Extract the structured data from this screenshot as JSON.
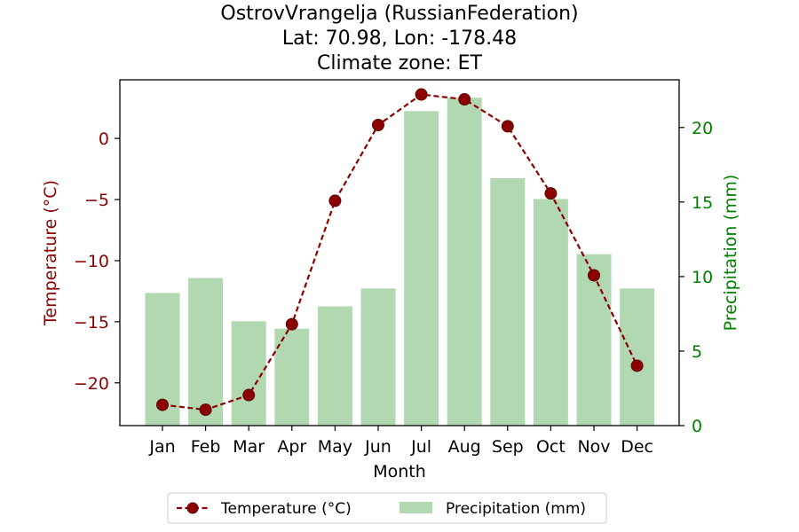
{
  "chart_data": {
    "type": "bar+line",
    "title_lines": [
      "OstrovVrangelja (RussianFederation)",
      "Lat: 70.98, Lon: -178.48",
      "Climate zone: ET"
    ],
    "xlabel": "Month",
    "categories": [
      "Jan",
      "Feb",
      "Mar",
      "Apr",
      "May",
      "Jun",
      "Jul",
      "Aug",
      "Sep",
      "Oct",
      "Nov",
      "Dec"
    ],
    "temperature": {
      "name": "Temperature (°C)",
      "axis_label": "Temperature (°C)",
      "color": "#8b0000",
      "values": [
        -21.8,
        -22.2,
        -21.0,
        -15.2,
        -5.1,
        1.1,
        3.6,
        3.2,
        1.0,
        -4.5,
        -11.2,
        -18.6
      ],
      "ylim": [
        -23.5,
        4.8
      ],
      "yticks": [
        0,
        -5,
        -10,
        -15,
        -20
      ],
      "ytick_labels": [
        "0",
        "−5",
        "−10",
        "−15",
        "−20"
      ]
    },
    "precipitation": {
      "name": "Precipitation (mm)",
      "axis_label": "Precipitation (mm)",
      "color": "#b2d8b2",
      "label_color": "#008000",
      "values": [
        8.9,
        9.9,
        7.0,
        6.5,
        8.0,
        9.2,
        21.1,
        22.0,
        16.6,
        15.2,
        11.5,
        9.2
      ],
      "ylim": [
        0,
        23.2
      ],
      "yticks": [
        0,
        5,
        10,
        15,
        20
      ],
      "ytick_labels": [
        "0",
        "5",
        "10",
        "15",
        "20"
      ]
    },
    "legend": {
      "placement": "bottom-center",
      "entries": [
        "Temperature (°C)",
        "Precipitation (mm)"
      ]
    },
    "grid": false
  }
}
